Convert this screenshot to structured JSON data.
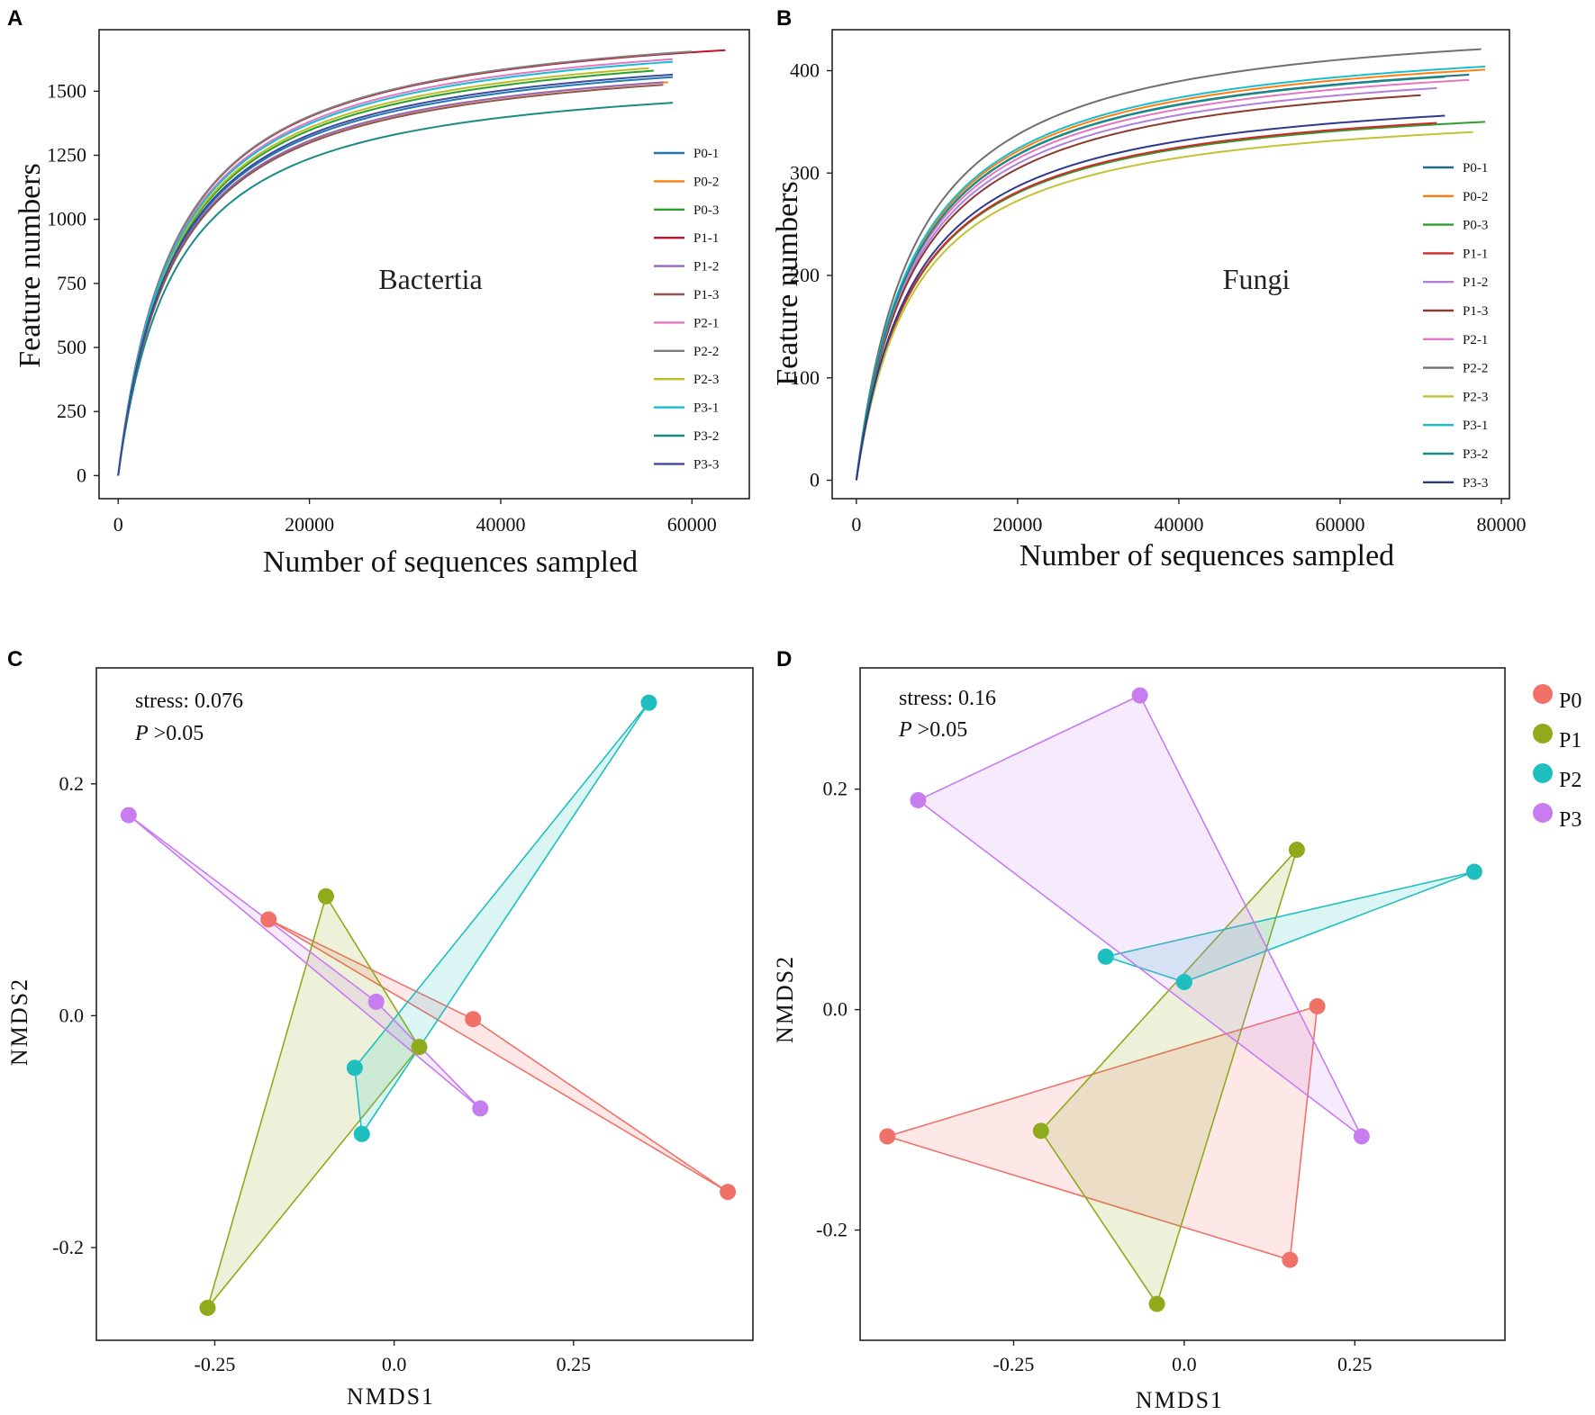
{
  "chart_data": [
    {
      "panel": "A",
      "type": "line",
      "title": "Bactertia",
      "xlabel": "Number of sequences sampled",
      "ylabel": "Feature numbers",
      "xlim": [
        -2000,
        66000
      ],
      "ylim": [
        -90,
        1740
      ],
      "xticks": [
        0,
        20000,
        40000,
        60000
      ],
      "xtick_labels": [
        "0",
        "20000",
        "40000",
        "60000"
      ],
      "yticks": [
        0,
        250,
        500,
        750,
        1000,
        1250,
        1500
      ],
      "ytick_labels": [
        "0",
        "250",
        "500",
        "750",
        "1000",
        "1250",
        "1500"
      ],
      "legend_position": "right",
      "series": [
        {
          "name": "P0-1",
          "color": "#1f77b4",
          "xmax": 58000,
          "final": 1555
        },
        {
          "name": "P0-2",
          "color": "#ff7f0e",
          "xmax": 57500,
          "final": 1535
        },
        {
          "name": "P0-3",
          "color": "#2ca02c",
          "xmax": 56000,
          "final": 1580
        },
        {
          "name": "P1-1",
          "color": "#c8102e",
          "xmax": 63500,
          "final": 1660
        },
        {
          "name": "P1-2",
          "color": "#9467bd",
          "xmax": 57000,
          "final": 1535
        },
        {
          "name": "P1-3",
          "color": "#8c564b",
          "xmax": 57000,
          "final": 1525
        },
        {
          "name": "P2-1",
          "color": "#e377c2",
          "xmax": 58000,
          "final": 1625
        },
        {
          "name": "P2-2",
          "color": "#7f7f7f",
          "xmax": 60000,
          "final": 1655
        },
        {
          "name": "P2-3",
          "color": "#bcbd22",
          "xmax": 55500,
          "final": 1590
        },
        {
          "name": "P3-1",
          "color": "#17becf",
          "xmax": 58000,
          "final": 1615
        },
        {
          "name": "P3-2",
          "color": "#1a8a85",
          "xmax": 58000,
          "final": 1455
        },
        {
          "name": "P3-3",
          "color": "#3b4a9a",
          "xmax": 58000,
          "final": 1565
        }
      ]
    },
    {
      "panel": "B",
      "type": "line",
      "title": "Fungi",
      "xlabel": "Number of sequences sampled",
      "ylabel": "Feature numbers",
      "xlim": [
        -3000,
        81000
      ],
      "ylim": [
        -18,
        440
      ],
      "xticks": [
        0,
        20000,
        40000,
        60000,
        80000
      ],
      "xtick_labels": [
        "0",
        "20000",
        "40000",
        "60000",
        "80000"
      ],
      "yticks": [
        0,
        100,
        200,
        300,
        400
      ],
      "ytick_labels": [
        "0",
        "100",
        "200",
        "300",
        "400"
      ],
      "legend_position": "right",
      "series": [
        {
          "name": "P0-1",
          "color": "#1f6f8b",
          "xmax": 76000,
          "final": 396
        },
        {
          "name": "P0-2",
          "color": "#ff7f0e",
          "xmax": 78000,
          "final": 401
        },
        {
          "name": "P0-3",
          "color": "#2ca02c",
          "xmax": 78000,
          "final": 350
        },
        {
          "name": "P1-1",
          "color": "#d62728",
          "xmax": 72000,
          "final": 349
        },
        {
          "name": "P1-2",
          "color": "#b07fe0",
          "xmax": 72000,
          "final": 383
        },
        {
          "name": "P1-3",
          "color": "#8b3a2e",
          "xmax": 70000,
          "final": 376
        },
        {
          "name": "P2-1",
          "color": "#e377c2",
          "xmax": 76000,
          "final": 391
        },
        {
          "name": "P2-2",
          "color": "#707070",
          "xmax": 77500,
          "final": 421
        },
        {
          "name": "P2-3",
          "color": "#c2c234",
          "xmax": 76500,
          "final": 340
        },
        {
          "name": "P3-1",
          "color": "#17becf",
          "xmax": 78000,
          "final": 404
        },
        {
          "name": "P3-2",
          "color": "#1a8a85",
          "xmax": 73000,
          "final": 394
        },
        {
          "name": "P3-3",
          "color": "#2e3a8c",
          "xmax": 73000,
          "final": 356
        }
      ]
    },
    {
      "panel": "C",
      "type": "scatter",
      "xlabel": "NMDS1",
      "ylabel": "NMDS2",
      "xlim": [
        -0.415,
        0.5
      ],
      "ylim": [
        -0.28,
        0.3
      ],
      "xticks": [
        -0.25,
        0.0,
        0.25
      ],
      "xtick_labels": [
        "-0.25",
        "0.0",
        "0.25"
      ],
      "yticks": [
        -0.2,
        0.0,
        0.2
      ],
      "ytick_labels": [
        "-0.2",
        "0.0",
        "0.2"
      ],
      "annotations": {
        "stress": "stress: 0.076",
        "p_italic": "P",
        "p_rest": " >0.05"
      },
      "groups": [
        {
          "name": "P0",
          "color": "#f07167",
          "points": [
            [
              -0.175,
              0.083
            ],
            [
              0.11,
              -0.003
            ],
            [
              0.465,
              -0.152
            ]
          ]
        },
        {
          "name": "P1",
          "color": "#8faa1b",
          "points": [
            [
              -0.095,
              0.103
            ],
            [
              0.035,
              -0.027
            ],
            [
              -0.26,
              -0.252
            ]
          ]
        },
        {
          "name": "P2",
          "color": "#1fbfbf",
          "points": [
            [
              0.355,
              0.27
            ],
            [
              -0.055,
              -0.045
            ],
            [
              -0.045,
              -0.102
            ]
          ]
        },
        {
          "name": "P3",
          "color": "#c77cf0",
          "points": [
            [
              -0.37,
              0.173
            ],
            [
              -0.025,
              0.012
            ],
            [
              0.12,
              -0.08
            ]
          ]
        }
      ]
    },
    {
      "panel": "D",
      "type": "scatter",
      "xlabel": "NMDS1",
      "ylabel": "NMDS2",
      "xlim": [
        -0.475,
        0.47
      ],
      "ylim": [
        -0.3,
        0.31
      ],
      "xticks": [
        -0.25,
        0.0,
        0.25
      ],
      "xtick_labels": [
        "-0.25",
        "0.0",
        "0.25"
      ],
      "yticks": [
        -0.2,
        0.0,
        0.2
      ],
      "ytick_labels": [
        "-0.2",
        "0.0",
        "0.2"
      ],
      "annotations": {
        "stress": "stress: 0.16",
        "p_italic": "P",
        "p_rest": " >0.05"
      },
      "legend_position": "right outside",
      "groups": [
        {
          "name": "P0",
          "color": "#f07167",
          "points": [
            [
              0.195,
              0.003
            ],
            [
              -0.435,
              -0.115
            ],
            [
              0.155,
              -0.227
            ]
          ]
        },
        {
          "name": "P1",
          "color": "#8faa1b",
          "points": [
            [
              0.165,
              0.145
            ],
            [
              -0.21,
              -0.11
            ],
            [
              -0.04,
              -0.267
            ]
          ]
        },
        {
          "name": "P2",
          "color": "#1fbfbf",
          "points": [
            [
              0.425,
              0.125
            ],
            [
              -0.115,
              0.048
            ],
            [
              0.0,
              0.025
            ]
          ]
        },
        {
          "name": "P3",
          "color": "#c77cf0",
          "points": [
            [
              -0.065,
              0.285
            ],
            [
              -0.39,
              0.19
            ],
            [
              0.26,
              -0.115
            ]
          ]
        }
      ]
    }
  ]
}
